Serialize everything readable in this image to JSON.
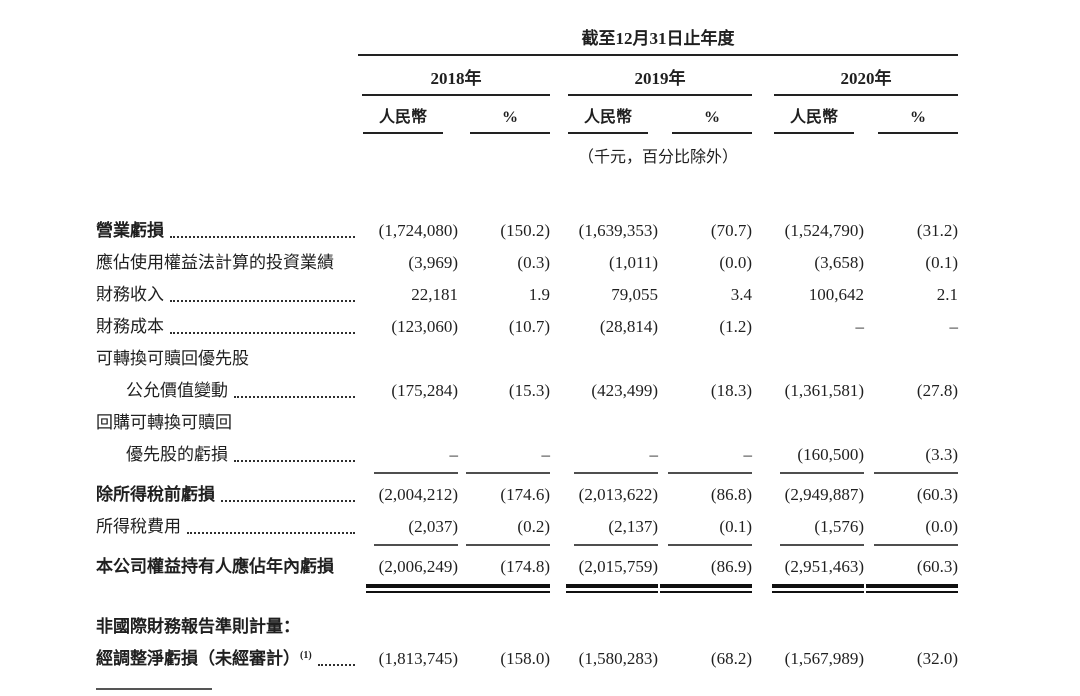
{
  "colors": {
    "background": "#ffffff",
    "text": "#1f1f1f",
    "heavy_rule": "#222222",
    "thin_rule": "#4f4f4f",
    "double_rule": "#101010"
  },
  "header": {
    "period_title": "截至12月31日止年度",
    "years": [
      "2018年",
      "2019年",
      "2020年"
    ],
    "subcolumns": {
      "currency": "人民幣",
      "percent": "%"
    },
    "unit_note": "（千元，百分比除外）"
  },
  "table": {
    "rows": [
      {
        "label": "營業虧損",
        "values": [
          "(1,724,080)",
          "(150.2)",
          "(1,639,353)",
          "(70.7)",
          "(1,524,790)",
          "(31.2)"
        ]
      },
      {
        "label": "應佔使用權益法計算的投資業績",
        "values": [
          "(3,969)",
          "(0.3)",
          "(1,011)",
          "(0.0)",
          "(3,658)",
          "(0.1)"
        ]
      },
      {
        "label": "財務收入",
        "values": [
          "22,181",
          "1.9",
          "79,055",
          "3.4",
          "100,642",
          "2.1"
        ]
      },
      {
        "label": "財務成本",
        "values": [
          "(123,060)",
          "(10.7)",
          "(28,814)",
          "(1.2)",
          "–",
          "–"
        ]
      },
      {
        "label": "可轉換可贖回優先股",
        "values": []
      },
      {
        "label": "公允價值變動",
        "values": [
          "(175,284)",
          "(15.3)",
          "(423,499)",
          "(18.3)",
          "(1,361,581)",
          "(27.8)"
        ]
      },
      {
        "label": "回購可轉換可贖回",
        "values": []
      },
      {
        "label": "優先股的虧損",
        "values": [
          "–",
          "–",
          "–",
          "–",
          "(160,500)",
          "(3.3)"
        ]
      },
      {
        "label": "除所得稅前虧損",
        "values": [
          "(2,004,212)",
          "(174.6)",
          "(2,013,622)",
          "(86.8)",
          "(2,949,887)",
          "(60.3)"
        ]
      },
      {
        "label": "所得稅費用",
        "values": [
          "(2,037)",
          "(0.2)",
          "(2,137)",
          "(0.1)",
          "(1,576)",
          "(0.0)"
        ]
      },
      {
        "label": "本公司權益持有人應佔年內虧損",
        "values": [
          "(2,006,249)",
          "(174.8)",
          "(2,015,759)",
          "(86.9)",
          "(2,951,463)",
          "(60.3)"
        ]
      },
      {
        "label": "非國際財務報告準則計量：",
        "values": []
      },
      {
        "label": "經調整淨虧損（未經審計）",
        "sup": "(1)",
        "values": [
          "(1,813,745)",
          "(158.0)",
          "(1,580,283)",
          "(68.2)",
          "(1,567,989)",
          "(32.0)"
        ]
      }
    ]
  }
}
